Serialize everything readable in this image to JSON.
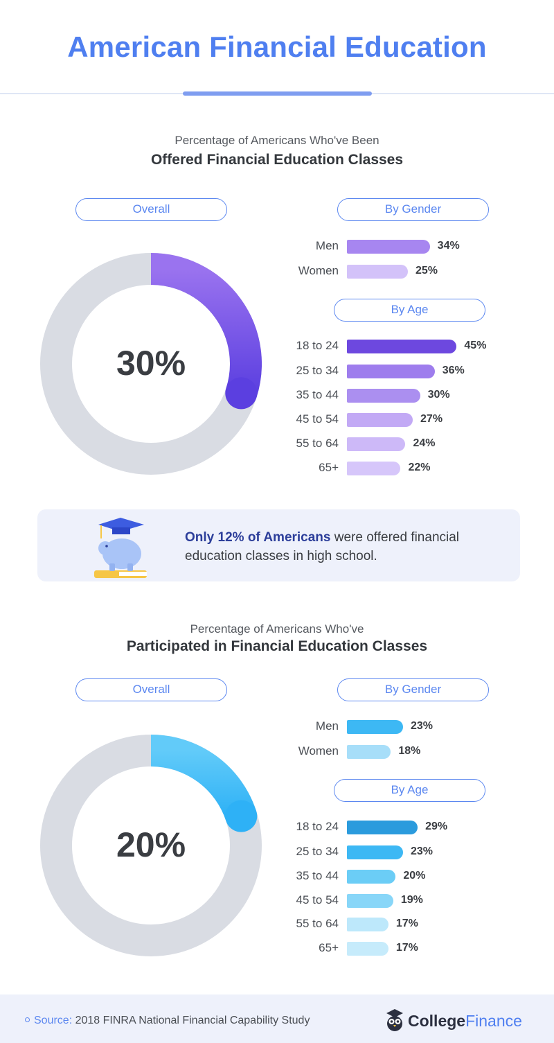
{
  "title": "American Financial Education",
  "sections": [
    {
      "subtitle": "Percentage of Americans Who've Been",
      "heading": "Offered Financial Education Classes",
      "overall_label": "Overall",
      "overall_value_text": "30%",
      "gender_label": "By Gender",
      "age_label": "By Age"
    },
    {
      "subtitle": "Percentage of Americans Who've",
      "heading": "Participated in Financial Education Classes",
      "overall_label": "Overall",
      "overall_value_text": "20%",
      "gender_label": "By Gender",
      "age_label": "By Age"
    }
  ],
  "callout": {
    "emphasis": "Only 12% of Americans",
    "text": " were offered financial education classes in high school.",
    "icon": "piggy-bank-graduation-icon"
  },
  "footer": {
    "source_label": "Source:",
    "source_text": "2018 FINRA National Financial Capability Study",
    "brand_primary": "College",
    "brand_secondary": "Finance",
    "brand_icon": "owl-logo-icon"
  },
  "colors": {
    "title": "#4f7ff0",
    "offered_primary": "#6b46e0",
    "participated_primary": "#2fa6e6",
    "donut_track": "#d9dce3"
  },
  "chart_data": [
    {
      "type": "pie",
      "title": "Overall",
      "categories": [
        "Offered"
      ],
      "values": [
        30
      ],
      "unit": "%"
    },
    {
      "type": "bar",
      "title": "By Gender",
      "categories": [
        "Men",
        "Women"
      ],
      "values": [
        34,
        25
      ],
      "unit": "%"
    },
    {
      "type": "bar",
      "title": "By Age",
      "categories": [
        "18 to 24",
        "25 to 34",
        "35 to 44",
        "45 to 54",
        "55 to 64",
        "65+"
      ],
      "values": [
        45,
        36,
        30,
        27,
        24,
        22
      ],
      "unit": "%"
    },
    {
      "type": "pie",
      "title": "Overall",
      "categories": [
        "Participated"
      ],
      "values": [
        20
      ],
      "unit": "%"
    },
    {
      "type": "bar",
      "title": "By Gender",
      "categories": [
        "Men",
        "Women"
      ],
      "values": [
        23,
        18
      ],
      "unit": "%"
    },
    {
      "type": "bar",
      "title": "By Age",
      "categories": [
        "18 to 24",
        "25 to 34",
        "35 to 44",
        "45 to 54",
        "55 to 64",
        "65+"
      ],
      "values": [
        29,
        23,
        20,
        19,
        17,
        17
      ],
      "unit": "%"
    }
  ]
}
